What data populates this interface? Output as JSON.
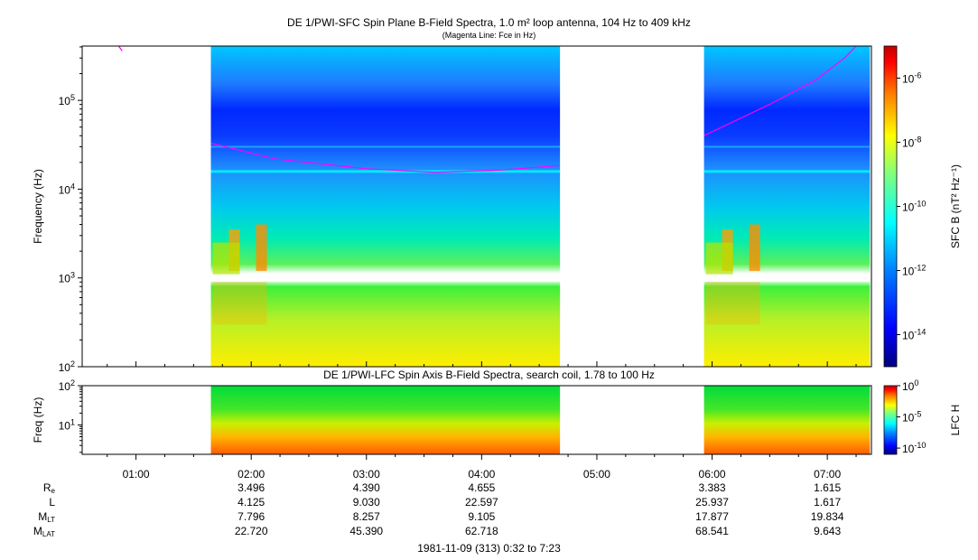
{
  "titles": {
    "main": "DE 1/PWI-SFC  Spin Plane B-Field Spectra, 1.0 m² loop antenna, 104 Hz to 409 kHz",
    "sub": "(Magenta Line: Fce in Hz)",
    "lower": "DE 1/PWI-LFC  Spin Axis B-Field Spectra, search coil, 1.78 to 100 Hz"
  },
  "footer": "1981-11-09 (313) 0:32 to 7:23",
  "colors": {
    "magenta_line": "#ff00ff",
    "colormap": [
      "#00007f",
      "#0000ff",
      "#007fff",
      "#00ffff",
      "#7fff7f",
      "#ffff00",
      "#ff7f00",
      "#ff0000",
      "#7f0000"
    ]
  },
  "chart_data": [
    {
      "type": "heatmap",
      "name": "SFC",
      "ylabel": "Frequency (Hz)",
      "yscale": "log",
      "ylim": [
        100,
        409000
      ],
      "yticks": [
        {
          "v": 100,
          "t": "10",
          "e": "2"
        },
        {
          "v": 1000,
          "t": "10",
          "e": "3"
        },
        {
          "v": 10000,
          "t": "10",
          "e": "4"
        },
        {
          "v": 100000,
          "t": "10",
          "e": "5"
        }
      ],
      "xlim_hours": [
        0.533,
        7.383
      ],
      "x_ticks": [
        "01:00",
        "02:00",
        "03:00",
        "04:00",
        "05:00",
        "06:00",
        "07:00"
      ],
      "data_intervals_hours": [
        [
          1.65,
          4.68
        ],
        [
          5.93,
          7.37
        ]
      ],
      "colorbar": {
        "label": "SFC B (nT² Hz⁻¹)",
        "scale": "log",
        "range": [
          1e-15,
          1e-05
        ],
        "ticks": [
          {
            "t": "10",
            "e": "-6",
            "v": -6
          },
          {
            "t": "10",
            "e": "-8",
            "v": -8
          },
          {
            "t": "10",
            "e": "-10",
            "v": -10
          },
          {
            "t": "10",
            "e": "-12",
            "v": -12
          },
          {
            "t": "10",
            "e": "-14",
            "v": -14
          }
        ]
      },
      "fce_line_hz": [
        {
          "t": 0.85,
          "f": 409000
        },
        {
          "t": 0.88,
          "f": 360000
        },
        {
          "t": 1.65,
          "f": 33000
        },
        {
          "t": 2.2,
          "f": 22000
        },
        {
          "t": 3.0,
          "f": 17000
        },
        {
          "t": 3.6,
          "f": 15500
        },
        {
          "t": 4.2,
          "f": 16500
        },
        {
          "t": 4.68,
          "f": 18500
        },
        {
          "t": 5.93,
          "f": 40000
        },
        {
          "t": 6.5,
          "f": 90000
        },
        {
          "t": 6.9,
          "f": 170000
        },
        {
          "t": 7.15,
          "f": 300000
        },
        {
          "t": 7.25,
          "f": 409000
        }
      ]
    },
    {
      "type": "heatmap",
      "name": "LFC",
      "ylabel": "Freq (Hz)",
      "yscale": "log",
      "ylim": [
        1.78,
        100
      ],
      "yticks": [
        {
          "v": 10,
          "t": "10",
          "e": "1"
        },
        {
          "v": 100,
          "t": "10",
          "e": "2"
        }
      ],
      "xlim_hours": [
        0.533,
        7.383
      ],
      "data_intervals_hours": [
        [
          1.65,
          4.68
        ],
        [
          5.93,
          7.37
        ]
      ],
      "colorbar": {
        "label": "LFC H",
        "scale": "log",
        "range": [
          1e-11,
          1
        ],
        "ticks": [
          {
            "t": "10",
            "e": "0",
            "v": 0
          },
          {
            "t": "10",
            "e": "-5",
            "v": -5
          },
          {
            "t": "10",
            "e": "-10",
            "v": -10
          }
        ]
      }
    }
  ],
  "ephemeris": {
    "times": [
      "02:00",
      "03:00",
      "04:00",
      "06:00",
      "07:00"
    ],
    "rows": [
      {
        "label": "R",
        "sub": "e",
        "values": [
          "3.496",
          "4.390",
          "4.655",
          "3.383",
          "1.615"
        ]
      },
      {
        "label": "L",
        "sub": "",
        "values": [
          "4.125",
          "9.030",
          "22.597",
          "25.937",
          "1.617"
        ]
      },
      {
        "label": "M",
        "sub": "LT",
        "values": [
          "7.796",
          "8.257",
          "9.105",
          "17.877",
          "19.834"
        ]
      },
      {
        "label": "M",
        "sub": "LAT",
        "values": [
          "22.720",
          "45.390",
          "62.718",
          "68.541",
          "9.643"
        ]
      }
    ]
  }
}
